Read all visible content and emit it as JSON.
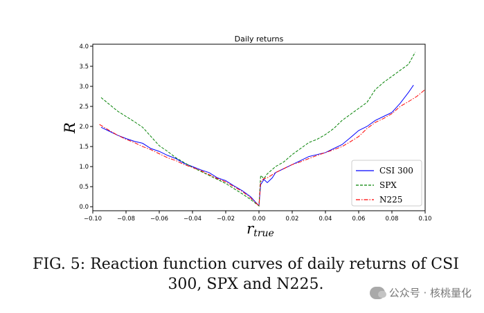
{
  "chart_data": {
    "type": "line",
    "title": "Daily returns",
    "xlabel": "r_true",
    "xlabel_main": "r",
    "xlabel_sub": "true",
    "ylabel": "R",
    "xlim": [
      -0.1,
      0.1
    ],
    "ylim": [
      -0.1,
      4.05
    ],
    "xticks": [
      -0.1,
      -0.08,
      -0.06,
      -0.04,
      -0.02,
      0.0,
      0.02,
      0.04,
      0.06,
      0.08,
      0.1
    ],
    "xtick_labels": [
      "−0.10",
      "−0.08",
      "−0.06",
      "−0.04",
      "−0.02",
      "0.00",
      "0.02",
      "0.04",
      "0.06",
      "0.08",
      "0.10"
    ],
    "yticks": [
      0.0,
      0.5,
      1.0,
      1.5,
      2.0,
      2.5,
      3.0,
      3.5,
      4.0
    ],
    "ytick_labels": [
      "0.0",
      "0.5",
      "1.0",
      "1.5",
      "2.0",
      "2.5",
      "3.0",
      "3.5",
      "4.0"
    ],
    "legend_position": "lower-right",
    "series": [
      {
        "name": "CSI 300",
        "color": "#0000ff",
        "style": "solid",
        "x": [
          -0.095,
          -0.09,
          -0.085,
          -0.08,
          -0.075,
          -0.07,
          -0.065,
          -0.06,
          -0.055,
          -0.05,
          -0.045,
          -0.04,
          -0.035,
          -0.03,
          -0.025,
          -0.02,
          -0.015,
          -0.01,
          -0.005,
          0.0,
          0.001,
          0.003,
          0.005,
          0.008,
          0.01,
          0.015,
          0.02,
          0.025,
          0.03,
          0.035,
          0.04,
          0.045,
          0.05,
          0.055,
          0.06,
          0.065,
          0.07,
          0.075,
          0.08,
          0.085,
          0.09,
          0.093
        ],
        "y": [
          1.98,
          1.88,
          1.78,
          1.7,
          1.63,
          1.58,
          1.45,
          1.38,
          1.28,
          1.2,
          1.08,
          1.0,
          0.92,
          0.85,
          0.72,
          0.65,
          0.52,
          0.4,
          0.25,
          0.02,
          0.55,
          0.68,
          0.6,
          0.72,
          0.85,
          0.95,
          1.05,
          1.15,
          1.25,
          1.3,
          1.35,
          1.45,
          1.55,
          1.72,
          1.9,
          2.0,
          2.15,
          2.25,
          2.35,
          2.58,
          2.85,
          3.03
        ]
      },
      {
        "name": "SPX",
        "color": "#008000",
        "style": "dashed",
        "x": [
          -0.095,
          -0.09,
          -0.085,
          -0.08,
          -0.075,
          -0.07,
          -0.065,
          -0.06,
          -0.055,
          -0.05,
          -0.045,
          -0.04,
          -0.035,
          -0.03,
          -0.025,
          -0.02,
          -0.015,
          -0.01,
          -0.005,
          0.0,
          0.001,
          0.003,
          0.005,
          0.01,
          0.015,
          0.02,
          0.025,
          0.03,
          0.035,
          0.04,
          0.045,
          0.05,
          0.055,
          0.06,
          0.065,
          0.07,
          0.075,
          0.08,
          0.085,
          0.09,
          0.094
        ],
        "y": [
          2.72,
          2.55,
          2.38,
          2.25,
          2.12,
          1.98,
          1.75,
          1.52,
          1.38,
          1.22,
          1.1,
          0.98,
          0.88,
          0.78,
          0.68,
          0.58,
          0.45,
          0.32,
          0.18,
          0.02,
          0.78,
          0.7,
          0.82,
          1.0,
          1.12,
          1.3,
          1.45,
          1.6,
          1.68,
          1.8,
          1.95,
          2.15,
          2.3,
          2.45,
          2.6,
          2.92,
          3.1,
          3.25,
          3.4,
          3.55,
          3.85
        ]
      },
      {
        "name": "N225",
        "color": "#ff0000",
        "style": "dashdot",
        "x": [
          -0.096,
          -0.09,
          -0.085,
          -0.08,
          -0.075,
          -0.07,
          -0.065,
          -0.06,
          -0.055,
          -0.05,
          -0.045,
          -0.04,
          -0.035,
          -0.03,
          -0.025,
          -0.02,
          -0.015,
          -0.01,
          -0.005,
          0.0,
          0.001,
          0.003,
          0.005,
          0.01,
          0.015,
          0.02,
          0.025,
          0.03,
          0.035,
          0.04,
          0.045,
          0.05,
          0.055,
          0.06,
          0.065,
          0.07,
          0.075,
          0.08,
          0.085,
          0.09,
          0.095,
          0.1
        ],
        "y": [
          2.05,
          1.9,
          1.78,
          1.68,
          1.6,
          1.5,
          1.42,
          1.32,
          1.22,
          1.15,
          1.05,
          0.98,
          0.9,
          0.8,
          0.7,
          0.62,
          0.5,
          0.38,
          0.22,
          0.02,
          0.62,
          0.7,
          0.72,
          0.85,
          0.95,
          1.05,
          1.12,
          1.2,
          1.28,
          1.35,
          1.42,
          1.5,
          1.62,
          1.75,
          1.95,
          2.1,
          2.2,
          2.32,
          2.5,
          2.62,
          2.75,
          2.92
        ]
      }
    ]
  },
  "caption": "FIG. 5: Reaction function curves of daily returns of CSI 300, SPX and N225.",
  "watermark": "公众号 · 核桃量化"
}
